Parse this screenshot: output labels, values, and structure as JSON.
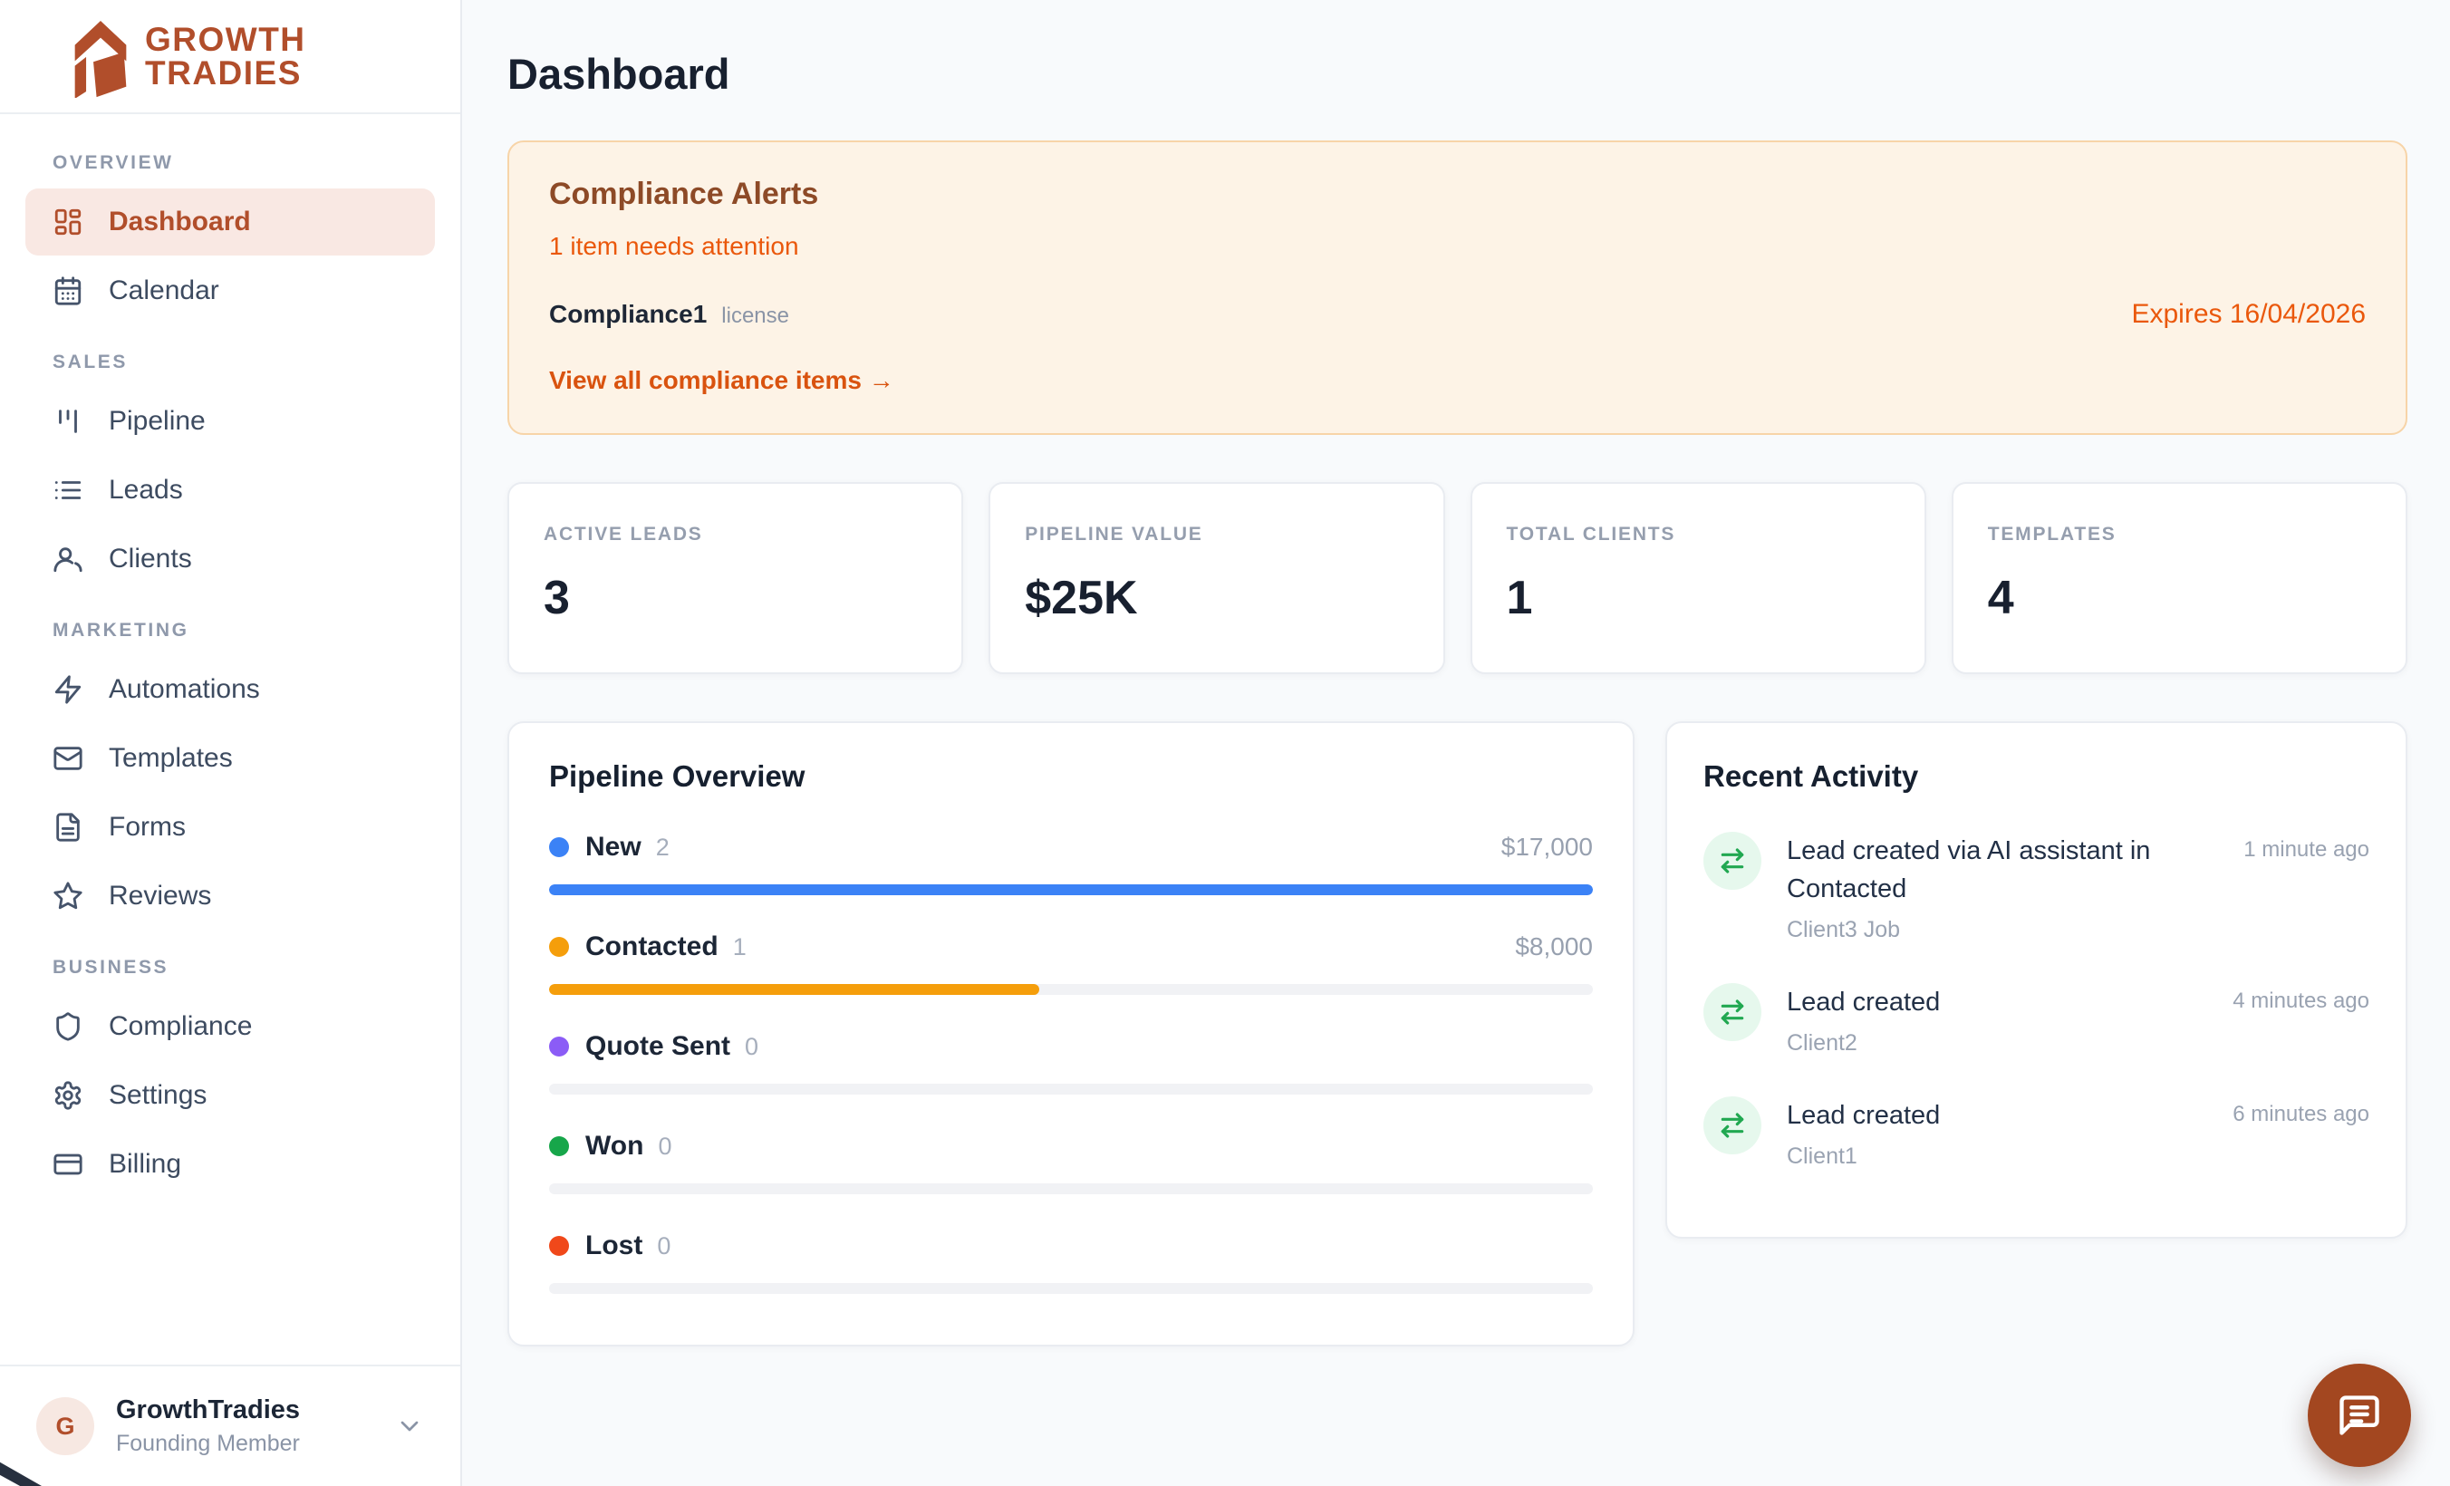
{
  "brand": {
    "name_line1": "GROWTH",
    "name_line2": "TRADIES",
    "primary_color": "#b14e2b"
  },
  "sidebar": {
    "sections": [
      {
        "label": "Overview",
        "items": [
          {
            "label": "Dashboard",
            "icon": "dashboard-grid",
            "active": true
          },
          {
            "label": "Calendar",
            "icon": "calendar",
            "active": false
          }
        ]
      },
      {
        "label": "Sales",
        "items": [
          {
            "label": "Pipeline",
            "icon": "kanban-bars",
            "active": false
          },
          {
            "label": "Leads",
            "icon": "list",
            "active": false
          },
          {
            "label": "Clients",
            "icon": "users",
            "active": false
          }
        ]
      },
      {
        "label": "Marketing",
        "items": [
          {
            "label": "Automations",
            "icon": "zap",
            "active": false
          },
          {
            "label": "Templates",
            "icon": "mail",
            "active": false
          },
          {
            "label": "Forms",
            "icon": "file-text",
            "active": false
          },
          {
            "label": "Reviews",
            "icon": "star",
            "active": false
          }
        ]
      },
      {
        "label": "Business",
        "items": [
          {
            "label": "Compliance",
            "icon": "shield",
            "active": false
          },
          {
            "label": "Settings",
            "icon": "gear",
            "active": false
          },
          {
            "label": "Billing",
            "icon": "credit-card",
            "active": false
          }
        ]
      }
    ],
    "user": {
      "initial": "G",
      "name": "GrowthTradies",
      "role": "Founding Member"
    }
  },
  "header": {
    "title": "Dashboard"
  },
  "compliance_banner": {
    "title": "Compliance Alerts",
    "subtitle": "1 item needs attention",
    "item_name": "Compliance1",
    "item_type": "license",
    "expiry": "Expires 16/04/2026",
    "link": "View all compliance items →"
  },
  "stats": [
    {
      "label": "Active Leads",
      "value": "3"
    },
    {
      "label": "Pipeline Value",
      "value": "$25K"
    },
    {
      "label": "Total Clients",
      "value": "1"
    },
    {
      "label": "Templates",
      "value": "4"
    }
  ],
  "pipeline": {
    "title": "Pipeline Overview",
    "stages": [
      {
        "label": "New",
        "count": 2,
        "value": "$17,000",
        "color": "#3b82f6",
        "fill_pct": 100
      },
      {
        "label": "Contacted",
        "count": 1,
        "value": "$8,000",
        "color": "#f59e0b",
        "fill_pct": 47
      },
      {
        "label": "Quote Sent",
        "count": 0,
        "value": "",
        "color": "#8b5cf6",
        "fill_pct": 0
      },
      {
        "label": "Won",
        "count": 0,
        "value": "",
        "color": "#17a64a",
        "fill_pct": 0
      },
      {
        "label": "Lost",
        "count": 0,
        "value": "",
        "color": "#f0481a",
        "fill_pct": 0
      }
    ]
  },
  "activity": {
    "title": "Recent Activity",
    "items": [
      {
        "title": "Lead created via AI assistant in Contacted",
        "subtitle": "Client3 Job",
        "time": "1 minute ago"
      },
      {
        "title": "Lead created",
        "subtitle": "Client2",
        "time": "4 minutes ago"
      },
      {
        "title": "Lead created",
        "subtitle": "Client1",
        "time": "6 minutes ago"
      }
    ]
  }
}
